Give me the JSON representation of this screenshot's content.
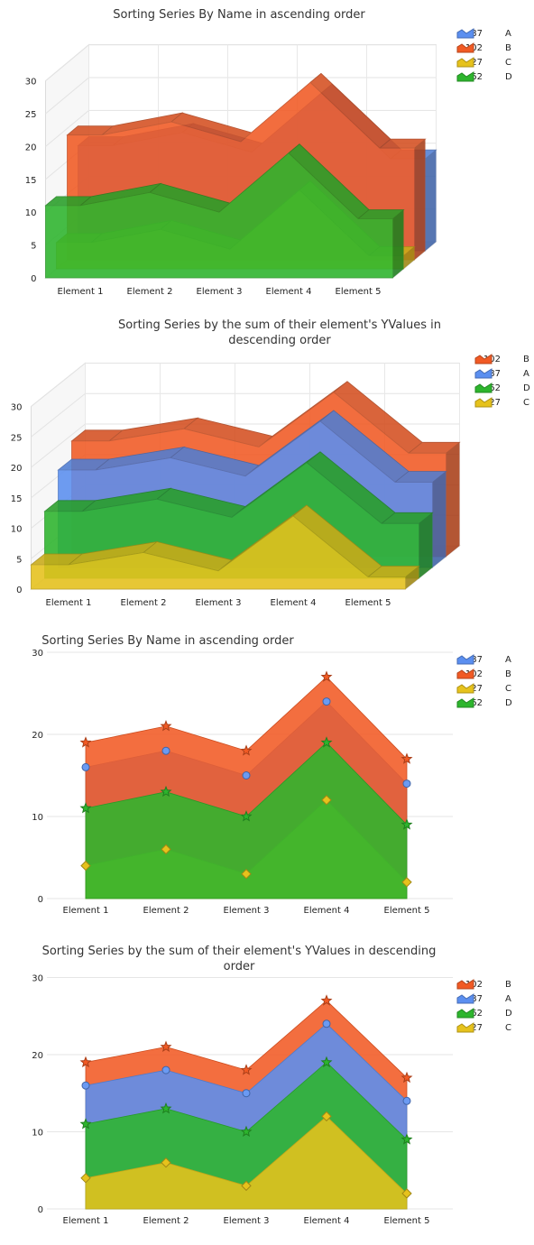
{
  "series_colors": {
    "A": "#5b8ff0",
    "B": "#f15a24",
    "C": "#e6c21c",
    "D": "#2db52d"
  },
  "chart_data": [
    {
      "type": "area",
      "style": "3d-stacked-area",
      "title": "Sorting Series By Name in ascending order",
      "categories": [
        "Element 1",
        "Element 2",
        "Element 3",
        "Element 4",
        "Element 5"
      ],
      "ylim": [
        0,
        30
      ],
      "yticks": [
        "0",
        "5",
        "10",
        "15",
        "20",
        "25",
        "30"
      ],
      "grid": true,
      "legend_position": "top-right",
      "series": [
        {
          "name": "A",
          "total": "87",
          "values": [
            16,
            18,
            15,
            24,
            14
          ]
        },
        {
          "name": "B",
          "total": "102",
          "values": [
            19,
            21,
            18,
            27,
            17
          ]
        },
        {
          "name": "C",
          "total": "27",
          "values": [
            4,
            6,
            3,
            12,
            2
          ]
        },
        {
          "name": "D",
          "total": "62",
          "values": [
            11,
            13,
            10,
            19,
            9
          ]
        }
      ]
    },
    {
      "type": "area",
      "style": "3d-stacked-area",
      "title": "Sorting Series by the sum of their element's YValues in descending order",
      "categories": [
        "Element 1",
        "Element 2",
        "Element 3",
        "Element 4",
        "Element 5"
      ],
      "ylim": [
        0,
        30
      ],
      "yticks": [
        "0",
        "5",
        "10",
        "15",
        "20",
        "25",
        "30"
      ],
      "grid": true,
      "legend_position": "top-right",
      "series": [
        {
          "name": "B",
          "total": "102",
          "values": [
            19,
            21,
            18,
            27,
            17
          ]
        },
        {
          "name": "A",
          "total": "87",
          "values": [
            16,
            18,
            15,
            24,
            14
          ]
        },
        {
          "name": "D",
          "total": "62",
          "values": [
            11,
            13,
            10,
            19,
            9
          ]
        },
        {
          "name": "C",
          "total": "27",
          "values": [
            4,
            6,
            3,
            12,
            2
          ]
        }
      ]
    },
    {
      "type": "area",
      "style": "2d-area",
      "title": "Sorting Series By Name in ascending order",
      "categories": [
        "Element 1",
        "Element 2",
        "Element 3",
        "Element 4",
        "Element 5"
      ],
      "ylim": [
        0,
        30
      ],
      "yticks": [
        "0",
        "10",
        "20",
        "30"
      ],
      "grid": true,
      "legend_position": "top-right",
      "series": [
        {
          "name": "A",
          "total": "87",
          "values": [
            16,
            18,
            15,
            24,
            14
          ]
        },
        {
          "name": "B",
          "total": "102",
          "values": [
            19,
            21,
            18,
            27,
            17
          ]
        },
        {
          "name": "C",
          "total": "27",
          "values": [
            4,
            6,
            3,
            12,
            2
          ]
        },
        {
          "name": "D",
          "total": "62",
          "values": [
            11,
            13,
            10,
            19,
            9
          ]
        }
      ]
    },
    {
      "type": "area",
      "style": "2d-area",
      "title": "Sorting Series by the sum of their element's YValues in descending order",
      "categories": [
        "Element 1",
        "Element 2",
        "Element 3",
        "Element 4",
        "Element 5"
      ],
      "ylim": [
        0,
        30
      ],
      "yticks": [
        "0",
        "10",
        "20",
        "30"
      ],
      "grid": true,
      "legend_position": "top-right",
      "series": [
        {
          "name": "B",
          "total": "102",
          "values": [
            19,
            21,
            18,
            27,
            17
          ]
        },
        {
          "name": "A",
          "total": "87",
          "values": [
            16,
            18,
            15,
            24,
            14
          ]
        },
        {
          "name": "D",
          "total": "62",
          "values": [
            11,
            13,
            10,
            19,
            9
          ]
        },
        {
          "name": "C",
          "total": "27",
          "values": [
            4,
            6,
            3,
            12,
            2
          ]
        }
      ]
    }
  ]
}
